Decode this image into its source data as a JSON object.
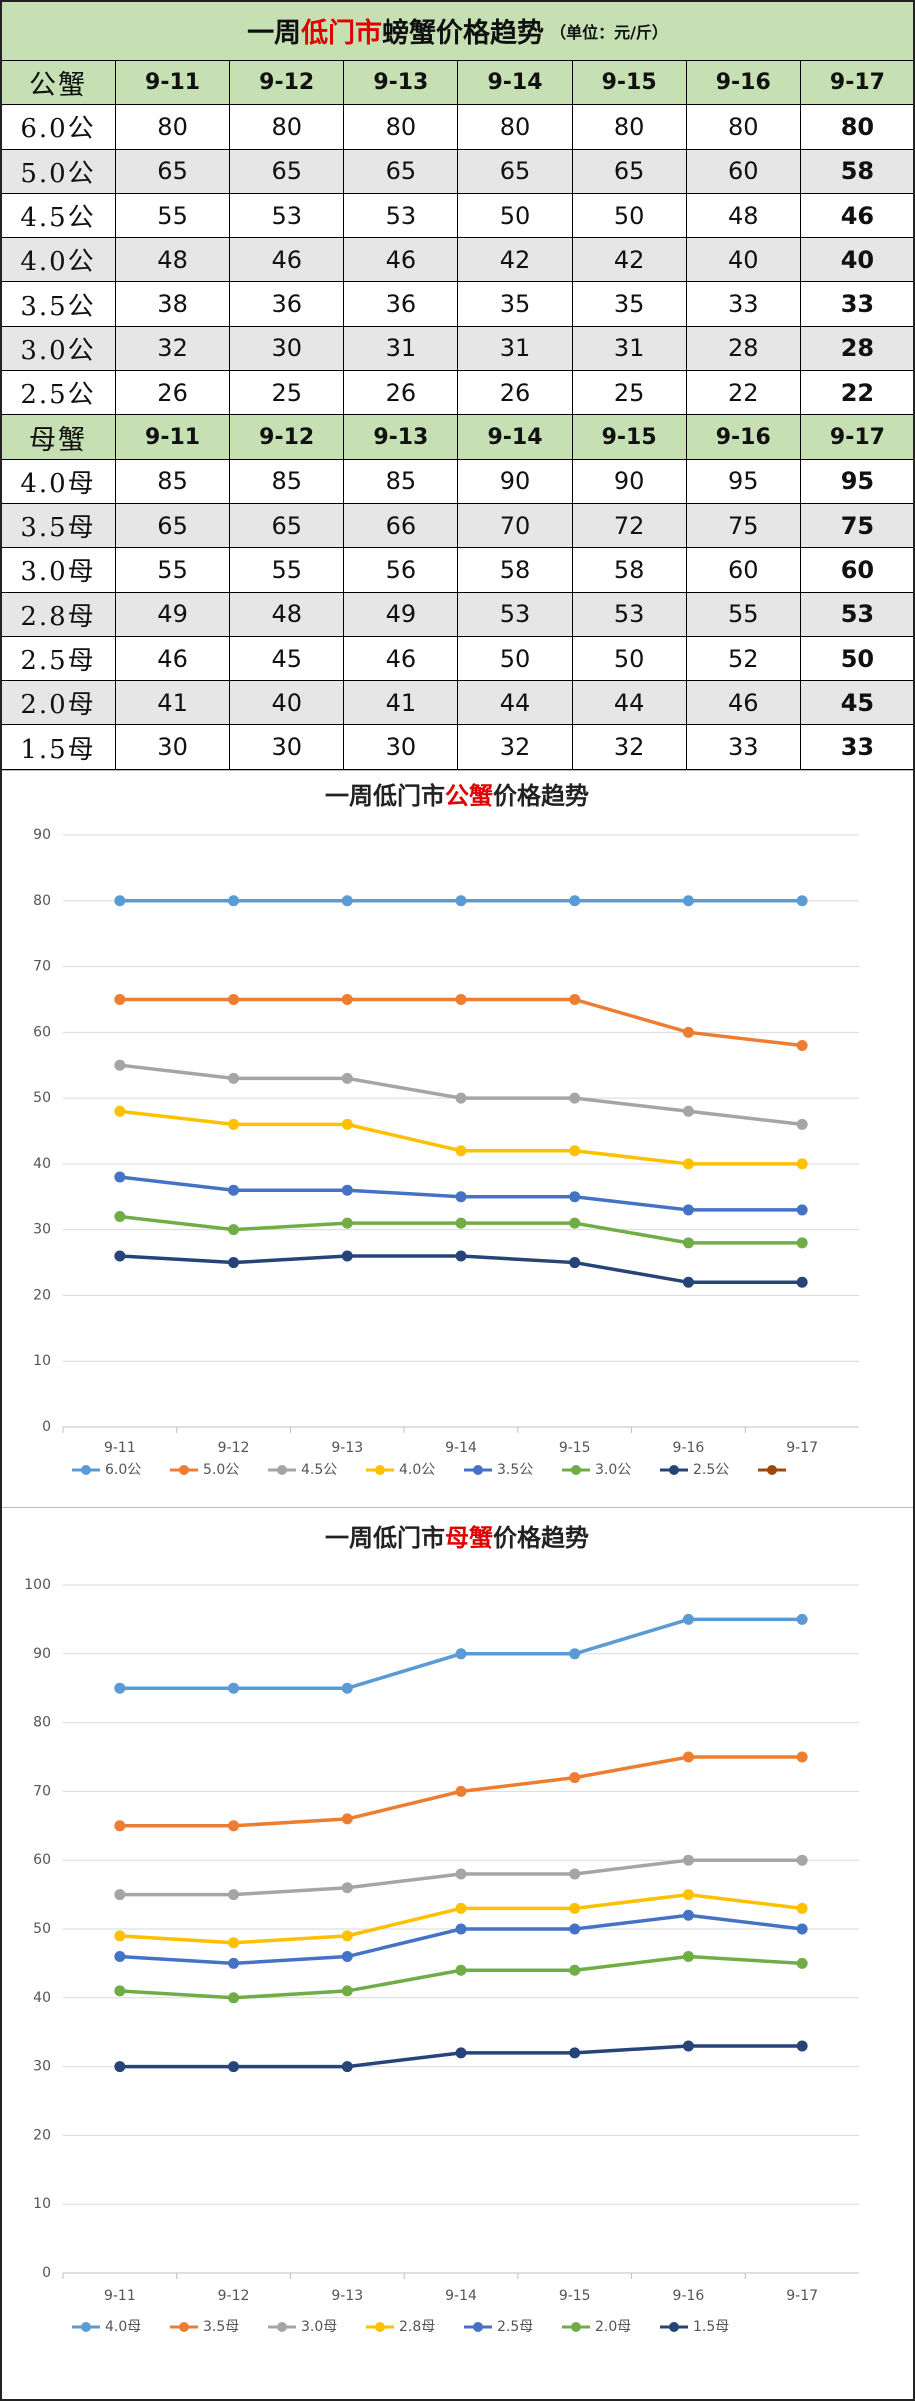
{
  "table": {
    "title": [
      "一周",
      "低门市",
      "螃蟹价格趋势"
    ],
    "unit": "（单位：元/斤）",
    "sections": [
      {
        "header": [
          "公蟹",
          "9-11",
          "9-12",
          "9-13",
          "9-14",
          "9-15",
          "9-16",
          "9-17"
        ],
        "rows": [
          [
            "6.0公",
            80,
            80,
            80,
            80,
            80,
            80,
            80
          ],
          [
            "5.0公",
            65,
            65,
            65,
            65,
            65,
            60,
            58
          ],
          [
            "4.5公",
            55,
            53,
            53,
            50,
            50,
            48,
            46
          ],
          [
            "4.0公",
            48,
            46,
            46,
            42,
            42,
            40,
            40
          ],
          [
            "3.5公",
            38,
            36,
            36,
            35,
            35,
            33,
            33
          ],
          [
            "3.0公",
            32,
            30,
            31,
            31,
            31,
            28,
            28
          ],
          [
            "2.5公",
            26,
            25,
            26,
            26,
            25,
            22,
            22
          ]
        ]
      },
      {
        "header": [
          "母蟹",
          "9-11",
          "9-12",
          "9-13",
          "9-14",
          "9-15",
          "9-16",
          "9-17"
        ],
        "rows": [
          [
            "4.0母",
            85,
            85,
            85,
            90,
            90,
            95,
            95
          ],
          [
            "3.5母",
            65,
            65,
            66,
            70,
            72,
            75,
            75
          ],
          [
            "3.0母",
            55,
            55,
            56,
            58,
            58,
            60,
            60
          ],
          [
            "2.8母",
            49,
            48,
            49,
            53,
            53,
            55,
            53
          ],
          [
            "2.5母",
            46,
            45,
            46,
            50,
            50,
            52,
            50
          ],
          [
            "2.0母",
            41,
            40,
            41,
            44,
            44,
            46,
            45
          ],
          [
            "1.5母",
            30,
            30,
            30,
            32,
            32,
            33,
            33
          ]
        ]
      }
    ]
  },
  "chart_data": [
    {
      "type": "line",
      "title": [
        "一周低门市",
        "公蟹",
        "价格趋势"
      ],
      "categories": [
        "9-11",
        "9-12",
        "9-13",
        "9-14",
        "9-15",
        "9-16",
        "9-17"
      ],
      "series": [
        {
          "name": "6.0公",
          "color": "#5b9bd5",
          "values": [
            80,
            80,
            80,
            80,
            80,
            80,
            80
          ]
        },
        {
          "name": "5.0公",
          "color": "#ed7d31",
          "values": [
            65,
            65,
            65,
            65,
            65,
            60,
            58
          ]
        },
        {
          "name": "4.5公",
          "color": "#a5a5a5",
          "values": [
            55,
            53,
            53,
            50,
            50,
            48,
            46
          ]
        },
        {
          "name": "4.0公",
          "color": "#ffc000",
          "values": [
            48,
            46,
            46,
            42,
            42,
            40,
            40
          ]
        },
        {
          "name": "3.5公",
          "color": "#4472c4",
          "values": [
            38,
            36,
            36,
            35,
            35,
            33,
            33
          ]
        },
        {
          "name": "3.0公",
          "color": "#70ad47",
          "values": [
            32,
            30,
            31,
            31,
            31,
            28,
            28
          ]
        },
        {
          "name": "2.5公",
          "color": "#264478",
          "values": [
            26,
            25,
            26,
            26,
            25,
            22,
            22
          ]
        }
      ],
      "ylim": [
        0,
        90
      ],
      "yticks": [
        0,
        10,
        20,
        30,
        40,
        50,
        60,
        70,
        80,
        90
      ],
      "grid": true,
      "legend": "bottom"
    },
    {
      "type": "line",
      "title": [
        "一周低门市",
        "母蟹",
        "价格趋势"
      ],
      "categories": [
        "9-11",
        "9-12",
        "9-13",
        "9-14",
        "9-15",
        "9-16",
        "9-17"
      ],
      "series": [
        {
          "name": "4.0母",
          "color": "#5b9bd5",
          "values": [
            85,
            85,
            85,
            90,
            90,
            95,
            95
          ]
        },
        {
          "name": "3.5母",
          "color": "#ed7d31",
          "values": [
            65,
            65,
            66,
            70,
            72,
            75,
            75
          ]
        },
        {
          "name": "3.0母",
          "color": "#a5a5a5",
          "values": [
            55,
            55,
            56,
            58,
            58,
            60,
            60
          ]
        },
        {
          "name": "2.8母",
          "color": "#ffc000",
          "values": [
            49,
            48,
            49,
            53,
            53,
            55,
            53
          ]
        },
        {
          "name": "2.5母",
          "color": "#4472c4",
          "values": [
            46,
            45,
            46,
            50,
            50,
            52,
            50
          ]
        },
        {
          "name": "2.0母",
          "color": "#70ad47",
          "values": [
            41,
            40,
            41,
            44,
            44,
            46,
            45
          ]
        },
        {
          "name": "1.5母",
          "color": "#264478",
          "values": [
            30,
            30,
            30,
            32,
            32,
            33,
            33
          ]
        }
      ],
      "ylim": [
        0,
        100
      ],
      "yticks": [
        0,
        10,
        20,
        30,
        40,
        50,
        60,
        70,
        80,
        90,
        100
      ],
      "grid": true,
      "legend": "bottom"
    }
  ]
}
